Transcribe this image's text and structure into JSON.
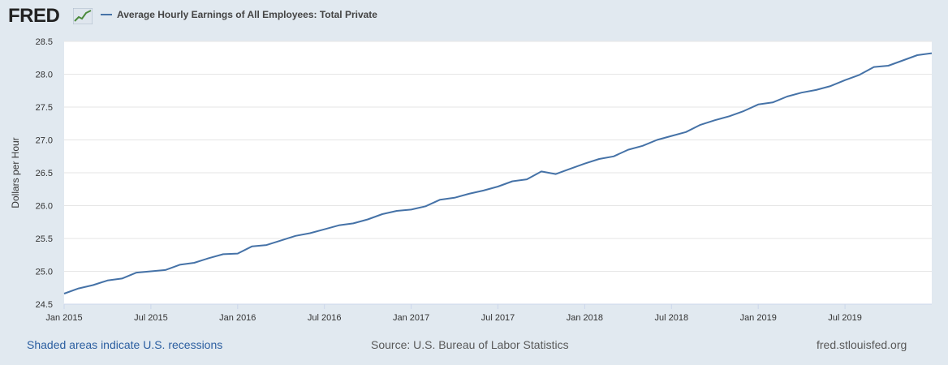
{
  "header": {
    "logo_text": "FRED",
    "series_title": "Average Hourly Earnings of All Employees: Total Private"
  },
  "colors": {
    "background": "#e1e9f0",
    "plot_bg": "#ffffff",
    "line": "#4572a7",
    "grid": "#e6e6e6",
    "link": "#2b5ea0"
  },
  "footer": {
    "recession_note": "Shaded areas indicate U.S. recessions",
    "source": "Source: U.S. Bureau of Labor Statistics",
    "site": "fred.stlouisfed.org"
  },
  "chart_data": {
    "type": "line",
    "title": "Average Hourly Earnings of All Employees: Total Private",
    "xlabel": "",
    "ylabel": "Dollars per Hour",
    "ylim": [
      24.5,
      28.5
    ],
    "yticks": [
      24.5,
      25.0,
      25.5,
      26.0,
      26.5,
      27.0,
      27.5,
      28.0,
      28.5
    ],
    "ytick_labels": [
      "24.5",
      "25.0",
      "25.5",
      "26.0",
      "26.5",
      "27.0",
      "27.5",
      "28.0",
      "28.5"
    ],
    "xticks": [
      {
        "label": "Jan 2015",
        "index": 0
      },
      {
        "label": "Jul 2015",
        "index": 6
      },
      {
        "label": "Jan 2016",
        "index": 12
      },
      {
        "label": "Jul 2016",
        "index": 18
      },
      {
        "label": "Jan 2017",
        "index": 24
      },
      {
        "label": "Jul 2017",
        "index": 30
      },
      {
        "label": "Jan 2018",
        "index": 36
      },
      {
        "label": "Jul 2018",
        "index": 42
      },
      {
        "label": "Jan 2019",
        "index": 48
      },
      {
        "label": "Jul 2019",
        "index": 54
      }
    ],
    "grid": true,
    "series": [
      {
        "name": "Average Hourly Earnings of All Employees: Total Private",
        "x_start": "Jan 2015",
        "frequency": "monthly",
        "values": [
          24.66,
          24.74,
          24.79,
          24.86,
          24.89,
          24.98,
          25.0,
          25.02,
          25.1,
          25.13,
          25.2,
          25.26,
          25.27,
          25.38,
          25.4,
          25.47,
          25.54,
          25.58,
          25.64,
          25.7,
          25.73,
          25.79,
          25.87,
          25.92,
          25.94,
          25.99,
          26.09,
          26.12,
          26.18,
          26.23,
          26.29,
          26.37,
          26.4,
          26.52,
          26.48,
          26.56,
          26.64,
          26.71,
          26.75,
          26.85,
          26.91,
          27.0,
          27.06,
          27.12,
          27.23,
          27.3,
          27.36,
          27.44,
          27.54,
          27.57,
          27.66,
          27.72,
          27.76,
          27.82,
          27.91,
          27.99,
          28.11,
          28.13,
          28.21,
          28.29,
          28.32
        ]
      }
    ]
  }
}
